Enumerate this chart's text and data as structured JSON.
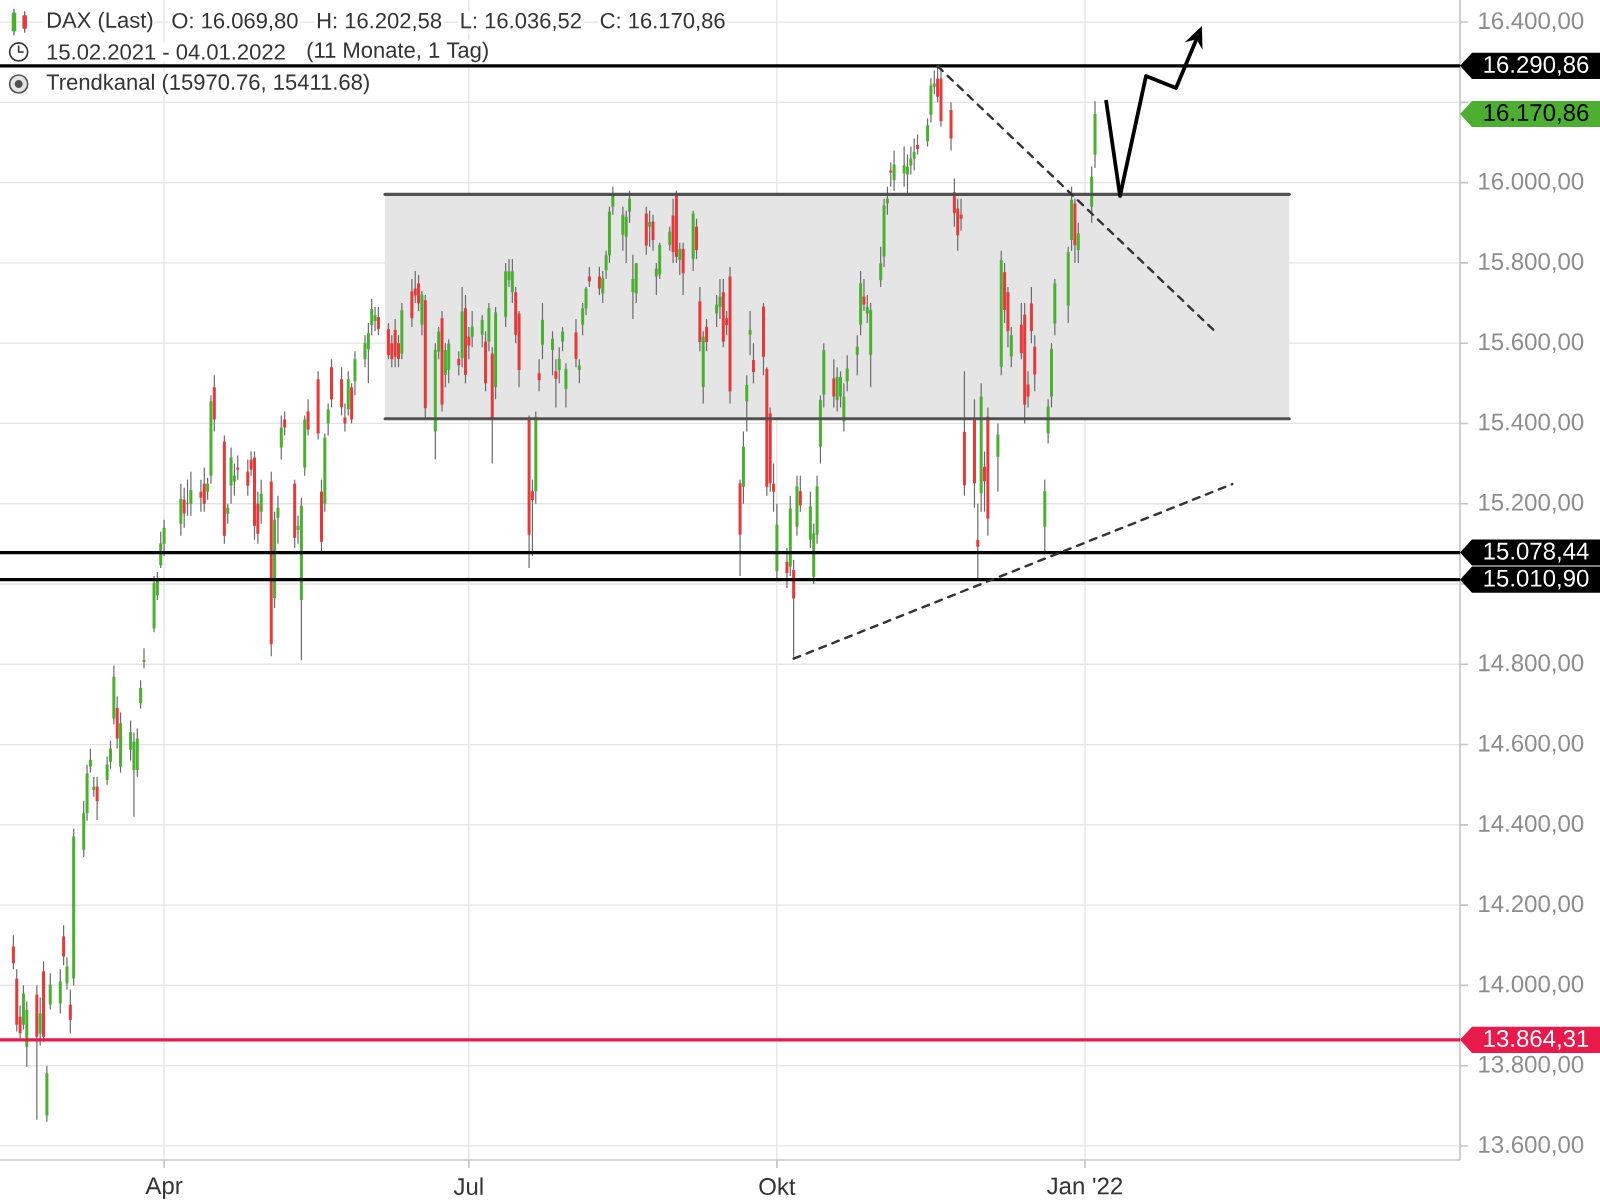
{
  "chart_data": {
    "type": "candlestick",
    "title": "DAX (Last)",
    "subtitle": "15.02.2021 - 04.01.2022",
    "annotations": [
      "O: 16.069,80",
      "H: 16.202,58",
      "L: 16.036,52",
      "C: 16.170,86",
      "(11 Monate, 1 Tag)",
      "16.170,86"
    ],
    "x": [
      "2021-02-15",
      "2021-02-16",
      "2021-02-17",
      "2021-02-18",
      "2021-02-19",
      "2021-02-22",
      "2021-02-23",
      "2021-02-24",
      "2021-02-25",
      "2021-02-26",
      "2021-03-01",
      "2021-03-02",
      "2021-03-03",
      "2021-03-04",
      "2021-03-05",
      "2021-03-08",
      "2021-03-09",
      "2021-03-10",
      "2021-03-11",
      "2021-03-12",
      "2021-03-15",
      "2021-03-16",
      "2021-03-17",
      "2021-03-18",
      "2021-03-19",
      "2021-03-22",
      "2021-03-23",
      "2021-03-24",
      "2021-03-25",
      "2021-03-26",
      "2021-03-29",
      "2021-03-30",
      "2021-03-31",
      "2021-04-01",
      "2021-04-06",
      "2021-04-07",
      "2021-04-08",
      "2021-04-09",
      "2021-04-12",
      "2021-04-13",
      "2021-04-14",
      "2021-04-15",
      "2021-04-16",
      "2021-04-19",
      "2021-04-20",
      "2021-04-21",
      "2021-04-22",
      "2021-04-23",
      "2021-04-26",
      "2021-04-27",
      "2021-04-28",
      "2021-04-29",
      "2021-04-30",
      "2021-05-03",
      "2021-05-04",
      "2021-05-05",
      "2021-05-06",
      "2021-05-07",
      "2021-05-10",
      "2021-05-11",
      "2021-05-12",
      "2021-05-13",
      "2021-05-14",
      "2021-05-17",
      "2021-05-18",
      "2021-05-19",
      "2021-05-20",
      "2021-05-21",
      "2021-05-24",
      "2021-05-25",
      "2021-05-26",
      "2021-05-27",
      "2021-05-28",
      "2021-05-31",
      "2021-06-01",
      "2021-06-02",
      "2021-06-03",
      "2021-06-04",
      "2021-06-07",
      "2021-06-08",
      "2021-06-09",
      "2021-06-10",
      "2021-06-11",
      "2021-06-14",
      "2021-06-15",
      "2021-06-16",
      "2021-06-17",
      "2021-06-18",
      "2021-06-21",
      "2021-06-22",
      "2021-06-23",
      "2021-06-24",
      "2021-06-25",
      "2021-06-28",
      "2021-06-29",
      "2021-06-30",
      "2021-07-01",
      "2021-07-02",
      "2021-07-05",
      "2021-07-06",
      "2021-07-07",
      "2021-07-08",
      "2021-07-09",
      "2021-07-12",
      "2021-07-13",
      "2021-07-14",
      "2021-07-15",
      "2021-07-16",
      "2021-07-19",
      "2021-07-20",
      "2021-07-21",
      "2021-07-22",
      "2021-07-23",
      "2021-07-26",
      "2021-07-27",
      "2021-07-28",
      "2021-07-29",
      "2021-07-30",
      "2021-08-02",
      "2021-08-03",
      "2021-08-04",
      "2021-08-05",
      "2021-08-06",
      "2021-08-09",
      "2021-08-10",
      "2021-08-11",
      "2021-08-12",
      "2021-08-13",
      "2021-08-16",
      "2021-08-17",
      "2021-08-18",
      "2021-08-19",
      "2021-08-20",
      "2021-08-23",
      "2021-08-24",
      "2021-08-25",
      "2021-08-26",
      "2021-08-27",
      "2021-08-30",
      "2021-08-31",
      "2021-09-01",
      "2021-09-02",
      "2021-09-03",
      "2021-09-06",
      "2021-09-07",
      "2021-09-08",
      "2021-09-09",
      "2021-09-10",
      "2021-09-13",
      "2021-09-14",
      "2021-09-15",
      "2021-09-16",
      "2021-09-17",
      "2021-09-20",
      "2021-09-21",
      "2021-09-22",
      "2021-09-23",
      "2021-09-24",
      "2021-09-27",
      "2021-09-28",
      "2021-09-29",
      "2021-09-30",
      "2021-10-01",
      "2021-10-04",
      "2021-10-05",
      "2021-10-06",
      "2021-10-07",
      "2021-10-08",
      "2021-10-11",
      "2021-10-12",
      "2021-10-13",
      "2021-10-14",
      "2021-10-15",
      "2021-10-18",
      "2021-10-19",
      "2021-10-20",
      "2021-10-21",
      "2021-10-22",
      "2021-10-25",
      "2021-10-26",
      "2021-10-27",
      "2021-10-28",
      "2021-10-29",
      "2021-11-01",
      "2021-11-02",
      "2021-11-03",
      "2021-11-04",
      "2021-11-05",
      "2021-11-08",
      "2021-11-09",
      "2021-11-10",
      "2021-11-11",
      "2021-11-12",
      "2021-11-15",
      "2021-11-16",
      "2021-11-17",
      "2021-11-18",
      "2021-11-19",
      "2021-11-22",
      "2021-11-23",
      "2021-11-24",
      "2021-11-25",
      "2021-11-26",
      "2021-11-29",
      "2021-11-30",
      "2021-12-01",
      "2021-12-02",
      "2021-12-03",
      "2021-12-06",
      "2021-12-07",
      "2021-12-08",
      "2021-12-09",
      "2021-12-10",
      "2021-12-13",
      "2021-12-14",
      "2021-12-15",
      "2021-12-16",
      "2021-12-17",
      "2021-12-20",
      "2021-12-21",
      "2021-12-22",
      "2021-12-23",
      "2021-12-27",
      "2021-12-28",
      "2021-12-29",
      "2021-12-30",
      "2022-01-03",
      "2022-01-04"
    ],
    "ohlc": [
      [
        14097,
        14125,
        14040,
        14055
      ],
      [
        14017,
        14040,
        13885,
        13902
      ],
      [
        13922,
        13950,
        13865,
        13881
      ],
      [
        13902,
        14000,
        13890,
        13980
      ],
      [
        13847,
        13960,
        13797,
        13939
      ],
      [
        13977,
        14000,
        13665,
        13872
      ],
      [
        13880,
        13970,
        13850,
        13930
      ],
      [
        14035,
        14060,
        13860,
        13872
      ],
      [
        13676,
        13800,
        13660,
        13781
      ],
      [
        13952,
        14030,
        13940,
        14002
      ],
      [
        13955,
        14040,
        13930,
        14010
      ],
      [
        14122,
        14150,
        14050,
        14072
      ],
      [
        14005,
        14070,
        13990,
        14047
      ],
      [
        13952,
        13990,
        13880,
        13914
      ],
      [
        14017,
        14390,
        14000,
        14371
      ],
      [
        14338,
        14460,
        14320,
        14429
      ],
      [
        14429,
        14550,
        14410,
        14528
      ],
      [
        14545,
        14590,
        14530,
        14562
      ],
      [
        14487,
        14520,
        14470,
        14495
      ],
      [
        14495,
        14520,
        14412,
        14459
      ],
      [
        14512,
        14570,
        14500,
        14550
      ],
      [
        14557,
        14610,
        14540,
        14590
      ],
      [
        14665,
        14797,
        14650,
        14769
      ],
      [
        14691,
        14720,
        14590,
        14615
      ],
      [
        14545,
        14680,
        14530,
        14653
      ],
      [
        14587,
        14660,
        14560,
        14631
      ],
      [
        14537,
        14630,
        14420,
        14607
      ],
      [
        14537,
        14640,
        14520,
        14615
      ],
      [
        14703,
        14760,
        14690,
        14741
      ],
      [
        14806,
        14840,
        14790,
        14811
      ],
      [
        14889,
        15020,
        14880,
        15002
      ],
      [
        14972,
        15030,
        14960,
        15010
      ],
      [
        15047,
        15130,
        15040,
        15101
      ],
      [
        15100,
        15160,
        15070,
        15140
      ],
      [
        15150,
        15250,
        15120,
        15212
      ],
      [
        15210,
        15240,
        15140,
        15176
      ],
      [
        15200,
        15260,
        15170,
        15202
      ],
      [
        15200,
        15280,
        15170,
        15234
      ],
      [
        15230,
        15260,
        15180,
        15215
      ],
      [
        15250,
        15290,
        15180,
        15200
      ],
      [
        15230,
        15265,
        15210,
        15250
      ],
      [
        15270,
        15470,
        15250,
        15455
      ],
      [
        15490,
        15520,
        15380,
        15410
      ],
      [
        15355,
        15370,
        15100,
        15120
      ],
      [
        15175,
        15200,
        15150,
        15190
      ],
      [
        15245,
        15340,
        15200,
        15315
      ],
      [
        15255,
        15300,
        15220,
        15270
      ],
      [
        15290,
        15320,
        15260,
        15285
      ],
      [
        15280,
        15310,
        15220,
        15245
      ],
      [
        15310,
        15330,
        15270,
        15285
      ],
      [
        15315,
        15330,
        15110,
        15145
      ],
      [
        15200,
        15230,
        15100,
        15125
      ],
      [
        15180,
        15260,
        15150,
        15225
      ],
      [
        15255,
        15280,
        14820,
        14850
      ],
      [
        14965,
        15180,
        14940,
        15160
      ],
      [
        15165,
        15220,
        15100,
        15190
      ],
      [
        15340,
        15420,
        15310,
        15390
      ],
      [
        15410,
        15430,
        15370,
        15390
      ],
      [
        15250,
        15260,
        15090,
        15115
      ],
      [
        15135,
        15170,
        15100,
        15145
      ],
      [
        14960,
        15215,
        14810,
        15195
      ],
      [
        15290,
        15420,
        15270,
        15410
      ],
      [
        15430,
        15460,
        15370,
        15385
      ],
      [
        15510,
        15530,
        15360,
        15375
      ],
      [
        15230,
        15260,
        15080,
        15105
      ],
      [
        15200,
        15375,
        15180,
        15365
      ],
      [
        15400,
        15450,
        15370,
        15435
      ],
      [
        15540,
        15560,
        15440,
        15460
      ],
      [
        15510,
        15540,
        15420,
        15440
      ],
      [
        15415,
        15450,
        15380,
        15400
      ],
      [
        15435,
        15530,
        15420,
        15510
      ],
      [
        15490,
        15500,
        15400,
        15410
      ],
      [
        15505,
        15580,
        15470,
        15560
      ],
      [
        15560,
        15620,
        15540,
        15600
      ],
      [
        15585,
        15650,
        15500,
        15625
      ],
      [
        15645,
        15710,
        15620,
        15685
      ],
      [
        15655,
        15690,
        15630,
        15670
      ],
      [
        15665,
        15690,
        15620,
        15635
      ],
      [
        15635,
        15650,
        15560,
        15570
      ],
      [
        15600,
        15620,
        15540,
        15560
      ],
      [
        15633,
        15660,
        15540,
        15566
      ],
      [
        15600,
        15620,
        15540,
        15561
      ],
      [
        15574,
        15700,
        15560,
        15682
      ],
      [
        15729,
        15760,
        15640,
        15662
      ],
      [
        15736,
        15780,
        15700,
        15719
      ],
      [
        15749,
        15770,
        15680,
        15699
      ],
      [
        15646,
        15730,
        15620,
        15721
      ],
      [
        15707,
        15720,
        15410,
        15438
      ],
      [
        15380,
        15600,
        15310,
        15583
      ],
      [
        15579,
        15640,
        15560,
        15629
      ],
      [
        15662,
        15680,
        15430,
        15447
      ],
      [
        15521,
        15600,
        15490,
        15583
      ],
      [
        15533,
        15610,
        15500,
        15599
      ],
      [
        15561,
        15580,
        15520,
        15545
      ],
      [
        15563,
        15740,
        15540,
        15679
      ],
      [
        15687,
        15720,
        15500,
        15521
      ],
      [
        15616,
        15640,
        15560,
        15594
      ],
      [
        15616,
        15680,
        15590,
        15641
      ],
      [
        15621,
        15670,
        15590,
        15658
      ],
      [
        15604,
        15630,
        15480,
        15500
      ],
      [
        15604,
        15700,
        15580,
        15687
      ],
      [
        15574,
        15590,
        15300,
        15412
      ],
      [
        15491,
        15690,
        15460,
        15677
      ],
      [
        15666,
        15800,
        15640,
        15779
      ],
      [
        15757,
        15810,
        15740,
        15779
      ],
      [
        15727,
        15810,
        15700,
        15779
      ],
      [
        15727,
        15740,
        15600,
        15621
      ],
      [
        15674,
        15680,
        15490,
        15533
      ],
      [
        15412,
        15420,
        15040,
        15123
      ],
      [
        15231,
        15260,
        15070,
        15209
      ],
      [
        15231,
        15430,
        15200,
        15417
      ],
      [
        15525,
        15560,
        15480,
        15508
      ],
      [
        15596,
        15700,
        15560,
        15658
      ],
      [
        15583,
        15630,
        15520,
        15611
      ],
      [
        15530,
        15560,
        15440,
        15511
      ],
      [
        15533,
        15590,
        15500,
        15561
      ],
      [
        15604,
        15640,
        15580,
        15629
      ],
      [
        15486,
        15550,
        15440,
        15536
      ],
      [
        15627,
        15660,
        15540,
        15561
      ],
      [
        15533,
        15560,
        15500,
        15545
      ],
      [
        15646,
        15700,
        15620,
        15687
      ],
      [
        15687,
        15740,
        15670,
        15736
      ],
      [
        15766,
        15790,
        15740,
        15754
      ],
      [
        15766,
        15790,
        15720,
        15736
      ],
      [
        15724,
        15780,
        15700,
        15762
      ],
      [
        15782,
        15830,
        15760,
        15819
      ],
      [
        15819,
        15940,
        15800,
        15928
      ],
      [
        15940,
        15990,
        15920,
        15970
      ],
      [
        15870,
        15940,
        15830,
        15920
      ],
      [
        15865,
        15930,
        15800,
        15915
      ],
      [
        15928,
        15980,
        15900,
        15960
      ],
      [
        15727,
        15820,
        15660,
        15760
      ],
      [
        15724,
        15800,
        15700,
        15799
      ],
      [
        15923,
        15940,
        15820,
        15843
      ],
      [
        15890,
        15930,
        15840,
        15902
      ],
      [
        15903,
        15920,
        15830,
        15857
      ],
      [
        15766,
        15800,
        15720,
        15786
      ],
      [
        15771,
        15850,
        15760,
        15845
      ],
      [
        15845,
        15890,
        15830,
        15878
      ],
      [
        15918,
        15960,
        15800,
        15827
      ],
      [
        15970,
        15980,
        15800,
        15815
      ],
      [
        15807,
        15850,
        15770,
        15835
      ],
      [
        15835,
        15850,
        15720,
        15774
      ],
      [
        15810,
        15930,
        15780,
        15923
      ],
      [
        15890,
        15910,
        15810,
        15832
      ],
      [
        15704,
        15740,
        15580,
        15603
      ],
      [
        15491,
        15630,
        15450,
        15616
      ],
      [
        15641,
        15660,
        15580,
        15603
      ],
      [
        15674,
        15720,
        15640,
        15696
      ],
      [
        15690,
        15760,
        15660,
        15716
      ],
      [
        15727,
        15760,
        15590,
        15604
      ],
      [
        15662,
        15680,
        15620,
        15645
      ],
      [
        15766,
        15790,
        15450,
        15480
      ],
      [
        15251,
        15260,
        15020,
        15123
      ],
      [
        15242,
        15380,
        15200,
        15342
      ],
      [
        15455,
        15520,
        15380,
        15496
      ],
      [
        15621,
        15680,
        15570,
        15633
      ],
      [
        15558,
        15600,
        15500,
        15528
      ],
      [
        15691,
        15700,
        15520,
        15566
      ],
      [
        15536,
        15540,
        15220,
        15242
      ],
      [
        15425,
        15440,
        15230,
        15251
      ],
      [
        15250,
        15300,
        15180,
        15230
      ],
      [
        15032,
        15200,
        15010,
        15148
      ],
      [
        15055,
        15090,
        14990,
        15027
      ],
      [
        15043,
        15220,
        15020,
        15188
      ],
      [
        15035,
        15060,
        14814,
        14964
      ],
      [
        15143,
        15270,
        15120,
        15243
      ],
      [
        15231,
        15270,
        15180,
        15196
      ],
      [
        15110,
        15230,
        15090,
        15193
      ],
      [
        15018,
        15150,
        15000,
        15126
      ],
      [
        15123,
        15270,
        15100,
        15243
      ],
      [
        15342,
        15470,
        15300,
        15458
      ],
      [
        15472,
        15600,
        15440,
        15583
      ],
      [
        15512,
        15560,
        15440,
        15467
      ],
      [
        15458,
        15540,
        15430,
        15516
      ],
      [
        15467,
        15530,
        15440,
        15516
      ],
      [
        15405,
        15500,
        15380,
        15467
      ],
      [
        15505,
        15570,
        15480,
        15537
      ],
      [
        15571,
        15620,
        15520,
        15591
      ],
      [
        15646,
        15780,
        15620,
        15749
      ],
      [
        15716,
        15760,
        15680,
        15696
      ],
      [
        15674,
        15720,
        15650,
        15691
      ],
      [
        15571,
        15700,
        15490,
        15683
      ],
      [
        15757,
        15840,
        15740,
        15799
      ],
      [
        15816,
        15960,
        15790,
        15943
      ],
      [
        15948,
        15990,
        15920,
        15960
      ],
      [
        16030,
        16050,
        15990,
        16025
      ],
      [
        16006,
        16080,
        15980,
        16045
      ],
      [
        16023,
        16090,
        15990,
        16043
      ],
      [
        16020,
        16070,
        15970,
        16040
      ],
      [
        16043,
        16090,
        16020,
        16060
      ],
      [
        16060,
        16110,
        16030,
        16076
      ],
      [
        16094,
        16120,
        16070,
        16084
      ],
      [
        16103,
        16160,
        16090,
        16143
      ],
      [
        16169,
        16260,
        16150,
        16242
      ],
      [
        16239,
        16280,
        16220,
        16247
      ],
      [
        16259,
        16291,
        16200,
        16214
      ],
      [
        16259,
        16285,
        16140,
        16153
      ],
      [
        16181,
        16200,
        16080,
        16110
      ],
      [
        15976,
        16010,
        15890,
        15924
      ],
      [
        15935,
        15960,
        15830,
        15869
      ],
      [
        15920,
        15960,
        15880,
        15910
      ],
      [
        15379,
        15530,
        15220,
        15246
      ],
      [
        15412,
        15460,
        15190,
        15251
      ],
      [
        15110,
        15200,
        15011,
        15093
      ],
      [
        15226,
        15500,
        15180,
        15467
      ],
      [
        15292,
        15330,
        15180,
        15256
      ],
      [
        15417,
        15440,
        15120,
        15163
      ],
      [
        15317,
        15400,
        15230,
        15372
      ],
      [
        15541,
        15830,
        15520,
        15807
      ],
      [
        15777,
        15800,
        15650,
        15683
      ],
      [
        15727,
        15740,
        15590,
        15630
      ],
      [
        15567,
        15640,
        15540,
        15620
      ],
      [
        15646,
        15700,
        15560,
        15575
      ],
      [
        15671,
        15700,
        15400,
        15447
      ],
      [
        15497,
        15530,
        15440,
        15467
      ],
      [
        15699,
        15740,
        15600,
        15630
      ],
      [
        15591,
        15620,
        15480,
        15522
      ],
      [
        15143,
        15260,
        15078,
        15231
      ],
      [
        15375,
        15460,
        15350,
        15442
      ],
      [
        15467,
        15600,
        15440,
        15586
      ],
      [
        15649,
        15760,
        15620,
        15749
      ],
      [
        15694,
        15840,
        15650,
        15827
      ],
      [
        15857,
        15990,
        15830,
        15957
      ],
      [
        15948,
        15960,
        15800,
        15844
      ],
      [
        15832,
        15900,
        15800,
        15874
      ],
      [
        15940,
        16040,
        15900,
        16015
      ],
      [
        16069.8,
        16202.58,
        16036.52,
        16170.86
      ]
    ],
    "colors": [
      "#e23b3b",
      "#e23b3b",
      "#e23b3b",
      "#4caf32",
      "#4caf32",
      "#e23b3b",
      "#4caf32",
      "#e23b3b",
      "#4caf32",
      "#4caf32",
      "#4caf32",
      "#e23b3b",
      "#4caf32",
      "#e23b3b",
      "#4caf32",
      "#4caf32",
      "#4caf32",
      "#4caf32",
      "#4caf32",
      "#e23b3b",
      "#4caf32",
      "#4caf32",
      "#4caf32",
      "#e23b3b",
      "#4caf32",
      "#4caf32",
      "#4caf32",
      "#4caf32",
      "#4caf32",
      "#4caf32",
      "#4caf32",
      "#4caf32",
      "#4caf32",
      "#4caf32",
      "#4caf32",
      "#e23b3b",
      "#4caf32",
      "#4caf32",
      "#e23b3b",
      "#e23b3b",
      "#4caf32",
      "#4caf32",
      "#e23b3b",
      "#e23b3b",
      "#4caf32",
      "#4caf32",
      "#4caf32",
      "#e23b3b",
      "#e23b3b",
      "#e23b3b",
      "#e23b3b",
      "#e23b3b",
      "#4caf32",
      "#e23b3b",
      "#4caf32",
      "#4caf32",
      "#4caf32",
      "#e23b3b",
      "#e23b3b",
      "#4caf32",
      "#4caf32",
      "#4caf32",
      "#e23b3b",
      "#e23b3b",
      "#e23b3b",
      "#4caf32",
      "#4caf32",
      "#e23b3b",
      "#e23b3b",
      "#e23b3b",
      "#4caf32",
      "#e23b3b",
      "#4caf32",
      "#4caf32",
      "#4caf32",
      "#4caf32",
      "#4caf32",
      "#e23b3b",
      "#e23b3b",
      "#e23b3b",
      "#e23b3b",
      "#e23b3b",
      "#4caf32",
      "#e23b3b",
      "#e23b3b",
      "#e23b3b",
      "#4caf32",
      "#e23b3b",
      "#4caf32",
      "#4caf32",
      "#e23b3b",
      "#4caf32",
      "#4caf32",
      "#e23b3b",
      "#4caf32",
      "#e23b3b",
      "#e23b3b",
      "#4caf32",
      "#4caf32",
      "#e23b3b",
      "#4caf32",
      "#e23b3b",
      "#4caf32",
      "#4caf32",
      "#4caf32",
      "#4caf32",
      "#e23b3b",
      "#e23b3b",
      "#e23b3b",
      "#e23b3b",
      "#4caf32",
      "#e23b3b",
      "#4caf32",
      "#4caf32",
      "#e23b3b",
      "#4caf32",
      "#4caf32",
      "#4caf32",
      "#e23b3b",
      "#4caf32",
      "#4caf32",
      "#4caf32",
      "#e23b3b",
      "#e23b3b",
      "#4caf32",
      "#4caf32",
      "#4caf32",
      "#4caf32",
      "#4caf32",
      "#4caf32",
      "#4caf32",
      "#4caf32",
      "#4caf32",
      "#e23b3b",
      "#4caf32",
      "#e23b3b",
      "#4caf32",
      "#4caf32",
      "#4caf32",
      "#e23b3b",
      "#e23b3b",
      "#4caf32",
      "#e23b3b",
      "#4caf32",
      "#e23b3b",
      "#e23b3b",
      "#4caf32",
      "#e23b3b",
      "#4caf32",
      "#4caf32",
      "#e23b3b",
      "#e23b3b",
      "#e23b3b",
      "#e23b3b",
      "#4caf32",
      "#4caf32",
      "#4caf32",
      "#e23b3b",
      "#e23b3b",
      "#e23b3b",
      "#e23b3b",
      "#e23b3b",
      "#4caf32",
      "#e23b3b",
      "#4caf32",
      "#e23b3b",
      "#4caf32",
      "#e23b3b",
      "#4caf32",
      "#4caf32",
      "#4caf32",
      "#4caf32",
      "#4caf32",
      "#e23b3b",
      "#4caf32",
      "#4caf32",
      "#4caf32",
      "#4caf32",
      "#4caf32",
      "#4caf32",
      "#e23b3b",
      "#4caf32",
      "#4caf32",
      "#4caf32",
      "#4caf32",
      "#4caf32",
      "#e23b3b",
      "#4caf32",
      "#4caf32",
      "#4caf32",
      "#4caf32",
      "#4caf32",
      "#e23b3b",
      "#4caf32",
      "#4caf32",
      "#4caf32",
      "#e23b3b",
      "#e23b3b",
      "#e23b3b",
      "#e23b3b",
      "#e23b3b",
      "#e23b3b",
      "#e23b3b",
      "#e23b3b",
      "#e23b3b",
      "#4caf32",
      "#e23b3b",
      "#e23b3b",
      "#4caf32",
      "#4caf32",
      "#e23b3b",
      "#e23b3b",
      "#4caf32",
      "#e23b3b",
      "#e23b3b",
      "#e23b3b",
      "#e23b3b",
      "#e23b3b",
      "#4caf32",
      "#4caf32",
      "#4caf32",
      "#4caf32",
      "#4caf32",
      "#4caf32",
      "#e23b3b",
      "#4caf32",
      "#4caf32",
      "#4caf32"
    ],
    "xlim": [
      "2021-02-11",
      "2022-04-23"
    ],
    "ylim": [
      13565,
      16455
    ],
    "xticks": [
      {
        "value": "2021-04-01",
        "label": "Apr"
      },
      {
        "value": "2021-07-01",
        "label": "Jul"
      },
      {
        "value": "2021-10-01",
        "label": "Okt"
      },
      {
        "value": "2022-01-01",
        "label": "Jan '22"
      }
    ],
    "yticks": [
      {
        "value": 13600,
        "label": "13.600,00"
      },
      {
        "value": 13800,
        "label": "13.800,00"
      },
      {
        "value": 14000,
        "label": "14.000,00"
      },
      {
        "value": 14200,
        "label": "14.200,00"
      },
      {
        "value": 14400,
        "label": "14.400,00"
      },
      {
        "value": 14600,
        "label": "14.600,00"
      },
      {
        "value": 14800,
        "label": "14.800,00"
      },
      {
        "value": 15000,
        "label": null
      },
      {
        "value": 15200,
        "label": "15.200,00"
      },
      {
        "value": 15400,
        "label": "15.400,00"
      },
      {
        "value": 15600,
        "label": "15.600,00"
      },
      {
        "value": 15800,
        "label": "15.800,00"
      },
      {
        "value": 16000,
        "label": "16.000,00"
      },
      {
        "value": 16200,
        "label": null
      },
      {
        "value": 16400,
        "label": "16.400,00"
      }
    ],
    "grid": true,
    "legend": "top left",
    "series": [
      {
        "type": "line",
        "name": "Trendkanal (15970.76, 15411.68)",
        "color": "#515151",
        "line_style": "solid",
        "x": [
          "2021-06-06",
          "2022-03-03"
        ],
        "values": [
          15970.76,
          15970.76
        ],
        "lower": [
          15411.68,
          15411.68
        ],
        "upper": [
          15970.76,
          15970.76
        ]
      },
      {
        "type": "line",
        "color": "#515151",
        "line_style": "solid",
        "x": [
          "2021-06-06",
          "2022-03-03"
        ],
        "values": [
          15411.68,
          15411.68
        ]
      },
      {
        "type": "line",
        "color": "#333333",
        "line_style": "dashed",
        "x": [
          "2021-11-18",
          "2022-02-09"
        ],
        "values": [
          16290,
          15628
        ]
      },
      {
        "type": "line",
        "color": "#333333",
        "line_style": "dashed",
        "x": [
          "2021-10-06",
          "2022-02-14"
        ],
        "values": [
          14814,
          15249
        ]
      }
    ],
    "ref_lines": [
      {
        "axis": "y",
        "value": 16290.86,
        "label": "16.290,86",
        "color": "#000000"
      },
      {
        "axis": "y",
        "value": 15078.44,
        "label": "15.078,44",
        "color": "#000000"
      },
      {
        "axis": "y",
        "value": 15010.9,
        "label": "15.010,90",
        "color": "#000000"
      },
      {
        "axis": "y",
        "value": 13864.31,
        "label": "13.864,31",
        "color": "#e8194b"
      }
    ]
  }
}
